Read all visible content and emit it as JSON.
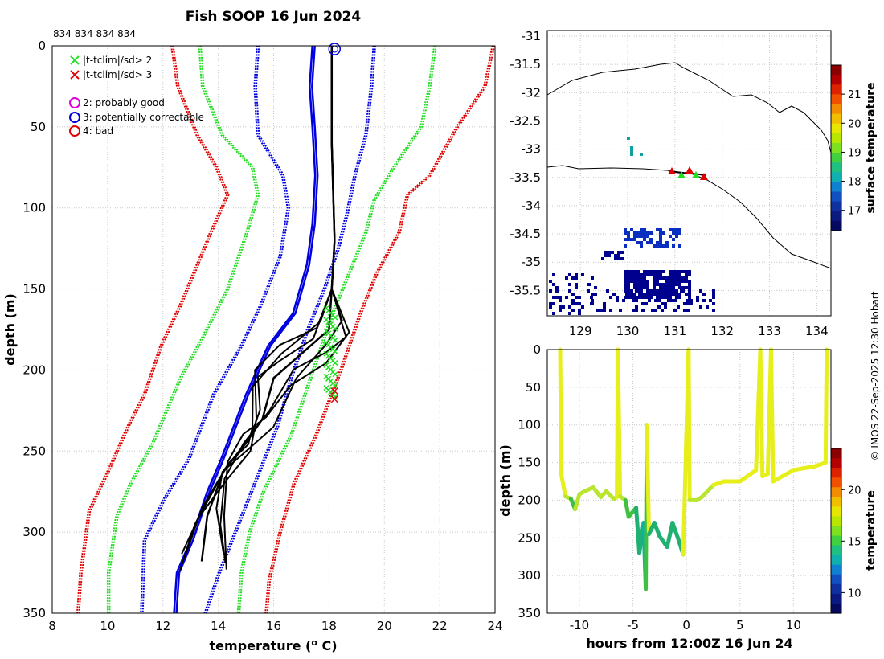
{
  "chart_data": [
    {
      "type": "line",
      "title": "Fish SOOP 16 Jun 2024",
      "header_note": "834 834 834 834",
      "xlabel": "temperature (o C)",
      "xlabel_main": "temperature (",
      "xlabel_sup": "o",
      "xlabel_tail": " C)",
      "ylabel": "depth (m)",
      "xlim": [
        8,
        24
      ],
      "ylim": [
        0,
        350
      ],
      "xticks": [
        "8",
        "10",
        "12",
        "14",
        "16",
        "18",
        "20",
        "22",
        "24"
      ],
      "yticks": [
        "0",
        "50",
        "100",
        "150",
        "200",
        "250",
        "300",
        "350"
      ],
      "legend": [
        {
          "label": "|t-tclim|/sd> 2",
          "marker": "x",
          "color": "#22dd22"
        },
        {
          "label": "|t-tclim|/sd> 3",
          "marker": "x",
          "color": "#e00000"
        },
        {
          "label": "2: probably good",
          "marker": "o",
          "color": "#e000e0"
        },
        {
          "label": "3: potentially correctable",
          "marker": "o",
          "color": "#0000e0"
        },
        {
          "label": "4: bad",
          "marker": "o",
          "color": "#e00000"
        }
      ],
      "series": [
        {
          "name": "clim -3sd",
          "color": "#e00000",
          "style": "dotted",
          "points": [
            [
              12.3,
              0
            ],
            [
              12.5,
              25
            ],
            [
              13.2,
              55
            ],
            [
              13.9,
              75
            ],
            [
              14.3,
              92
            ],
            [
              13.7,
              115
            ],
            [
              12.6,
              160
            ],
            [
              11.9,
              185
            ],
            [
              11.3,
              215
            ],
            [
              10.7,
              235
            ],
            [
              10.0,
              262
            ],
            [
              9.3,
              287
            ],
            [
              9.0,
              325
            ],
            [
              8.9,
              350
            ]
          ]
        },
        {
          "name": "clim -2sd",
          "color": "#22dd22",
          "style": "dotted",
          "points": [
            [
              13.3,
              0
            ],
            [
              13.4,
              25
            ],
            [
              14.1,
              55
            ],
            [
              15.2,
              75
            ],
            [
              15.4,
              92
            ],
            [
              15.0,
              115
            ],
            [
              14.3,
              150
            ],
            [
              13.4,
              180
            ],
            [
              12.6,
              205
            ],
            [
              11.6,
              245
            ],
            [
              10.8,
              270
            ],
            [
              10.3,
              290
            ],
            [
              10.0,
              325
            ],
            [
              10.0,
              350
            ]
          ]
        },
        {
          "name": "clim -1sd",
          "color": "#0000e0",
          "style": "dotted",
          "points": [
            [
              15.4,
              0
            ],
            [
              15.3,
              25
            ],
            [
              15.4,
              55
            ],
            [
              16.3,
              80
            ],
            [
              16.5,
              100
            ],
            [
              16.2,
              130
            ],
            [
              15.5,
              160
            ],
            [
              14.8,
              185
            ],
            [
              13.8,
              215
            ],
            [
              12.9,
              255
            ],
            [
              12.0,
              280
            ],
            [
              11.3,
              305
            ],
            [
              11.2,
              350
            ]
          ]
        },
        {
          "name": "clim mean",
          "color": "#0000e0",
          "style": "solid",
          "points": [
            [
              17.4,
              0
            ],
            [
              17.3,
              25
            ],
            [
              17.4,
              50
            ],
            [
              17.5,
              80
            ],
            [
              17.4,
              110
            ],
            [
              17.2,
              135
            ],
            [
              16.7,
              165
            ],
            [
              15.8,
              185
            ],
            [
              15.0,
              215
            ],
            [
              14.1,
              255
            ],
            [
              13.6,
              275
            ],
            [
              13.0,
              305
            ],
            [
              12.5,
              325
            ],
            [
              12.4,
              350
            ]
          ]
        },
        {
          "name": "clim +1sd",
          "color": "#0000e0",
          "style": "dotted",
          "points": [
            [
              19.6,
              0
            ],
            [
              19.5,
              25
            ],
            [
              19.3,
              55
            ],
            [
              18.9,
              80
            ],
            [
              18.6,
              105
            ],
            [
              18.3,
              125
            ],
            [
              17.8,
              150
            ],
            [
              17.2,
              175
            ],
            [
              16.6,
              205
            ],
            [
              16.1,
              235
            ],
            [
              15.4,
              265
            ],
            [
              14.7,
              295
            ],
            [
              14.0,
              325
            ],
            [
              13.5,
              350
            ]
          ]
        },
        {
          "name": "clim +2sd",
          "color": "#22dd22",
          "style": "dotted",
          "points": [
            [
              21.8,
              0
            ],
            [
              21.6,
              25
            ],
            [
              21.3,
              50
            ],
            [
              20.3,
              75
            ],
            [
              19.6,
              95
            ],
            [
              19.3,
              115
            ],
            [
              18.7,
              140
            ],
            [
              18.1,
              165
            ],
            [
              17.4,
              200
            ],
            [
              16.6,
              240
            ],
            [
              15.6,
              275
            ],
            [
              15.1,
              300
            ],
            [
              14.8,
              325
            ],
            [
              14.7,
              350
            ]
          ]
        },
        {
          "name": "clim +3sd",
          "color": "#e00000",
          "style": "dotted",
          "points": [
            [
              23.9,
              0
            ],
            [
              23.6,
              25
            ],
            [
              22.6,
              50
            ],
            [
              21.6,
              80
            ],
            [
              20.8,
              92
            ],
            [
              20.5,
              115
            ],
            [
              19.7,
              140
            ],
            [
              19.1,
              165
            ],
            [
              18.4,
              200
            ],
            [
              17.5,
              240
            ],
            [
              16.7,
              270
            ],
            [
              16.2,
              300
            ],
            [
              15.8,
              330
            ],
            [
              15.7,
              350
            ]
          ]
        },
        {
          "name": "profiles",
          "color": "#000000",
          "style": "solid",
          "points": [
            [
              18.1,
              0
            ],
            [
              18.1,
              60
            ],
            [
              18.2,
              120
            ],
            [
              18.1,
              150
            ],
            [
              18.0,
              175
            ],
            [
              17.0,
              190
            ],
            [
              16.0,
              205
            ],
            [
              15.6,
              230
            ],
            [
              15.0,
              245
            ],
            [
              14.2,
              262
            ],
            [
              13.6,
              290
            ],
            [
              13.4,
              318
            ]
          ]
        }
      ]
    },
    {
      "type": "scatter",
      "title": "surface temperature map",
      "xticks": [
        "129",
        "130",
        "131",
        "132",
        "133",
        "134"
      ],
      "yticks": [
        "-31",
        "-31.5",
        "-32",
        "-32.5",
        "-33",
        "-33.5",
        "-34",
        "-34.5",
        "-35",
        "-35.5"
      ],
      "xlim": [
        128.3,
        134.3
      ],
      "ylim": [
        -35.95,
        -30.9
      ],
      "colorbar": {
        "label": "surface temperature",
        "ticks": [
          "17",
          "18",
          "19",
          "20",
          "21"
        ],
        "range": [
          16.3,
          22.0
        ]
      },
      "cruise_track": {
        "lon": [
          130.8,
          131.8
        ],
        "lat": [
          -33.35,
          -33.5
        ]
      }
    },
    {
      "type": "scatter",
      "xlabel": "hours from 12:00Z 16 Jun 24",
      "ylabel": "depth (m)",
      "xlim": [
        -13,
        13.5
      ],
      "ylim": [
        0,
        350
      ],
      "xticks": [
        "-10",
        "-5",
        "0",
        "5",
        "10"
      ],
      "yticks": [
        "0",
        "50",
        "100",
        "150",
        "200",
        "250",
        "300",
        "350"
      ],
      "colorbar": {
        "label": "temperature",
        "ticks": [
          "10",
          "15",
          "20"
        ],
        "range": [
          8,
          24
        ]
      },
      "series": [
        {
          "name": "drop depth track",
          "points": [
            [
              -11.8,
              0
            ],
            [
              -11.7,
              165
            ],
            [
              -11.3,
              195
            ],
            [
              -10.8,
              198
            ],
            [
              -10.4,
              212
            ],
            [
              -10,
              192
            ],
            [
              -9.5,
              188
            ],
            [
              -8.7,
              183
            ],
            [
              -8,
              196
            ],
            [
              -7.5,
              188
            ],
            [
              -6.8,
              198
            ],
            [
              -6.5,
              196
            ],
            [
              -6.4,
              0
            ],
            [
              -6.2,
              195
            ],
            [
              -5.7,
              200
            ],
            [
              -5.4,
              222
            ],
            [
              -4.7,
              210
            ],
            [
              -4.4,
              270
            ],
            [
              -4.0,
              230
            ],
            [
              -3.8,
              318
            ],
            [
              -3.7,
              100
            ],
            [
              -3.5,
              245
            ],
            [
              -3.0,
              230
            ],
            [
              -2.5,
              248
            ],
            [
              -1.8,
              262
            ],
            [
              -1.3,
              230
            ],
            [
              -0.8,
              250
            ],
            [
              -0.3,
              272
            ],
            [
              0.2,
              0
            ],
            [
              0.3,
              200
            ],
            [
              1.0,
              200
            ],
            [
              1.5,
              195
            ],
            [
              2.5,
              180
            ],
            [
              3.5,
              175
            ],
            [
              5,
              175
            ],
            [
              6.5,
              160
            ],
            [
              6.9,
              0
            ],
            [
              7.1,
              168
            ],
            [
              7.6,
              165
            ],
            [
              7.9,
              0
            ],
            [
              8.1,
              175
            ],
            [
              10,
              160
            ],
            [
              12,
              155
            ],
            [
              13,
              150
            ],
            [
              13.1,
              0
            ]
          ]
        }
      ]
    }
  ],
  "copyright": "© IMOS 22-Sep-2025 12:30 Hobart",
  "colors": {
    "red": "#e00000",
    "green": "#22dd22",
    "blue": "#0000e0",
    "black": "#000000"
  }
}
